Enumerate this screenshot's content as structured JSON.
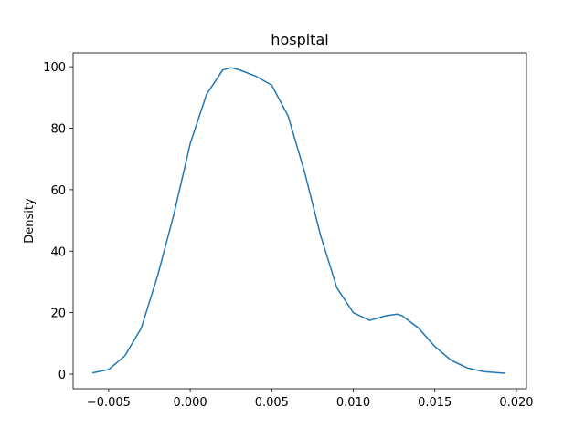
{
  "chart_data": {
    "type": "line",
    "title": "hospital",
    "y_label": "Density",
    "x": [
      -0.006,
      -0.005,
      -0.004,
      -0.003,
      -0.002,
      -0.001,
      0.0,
      0.001,
      0.002,
      0.0025,
      0.003,
      0.004,
      0.005,
      0.006,
      0.007,
      0.008,
      0.009,
      0.01,
      0.011,
      0.012,
      0.0127,
      0.013,
      0.014,
      0.015,
      0.016,
      0.017,
      0.018,
      0.019,
      0.0193
    ],
    "series": [
      {
        "color": "#1f77b4",
        "values": [
          0.4,
          1.5,
          6,
          15,
          32,
          52,
          75,
          91,
          99,
          99.7,
          99,
          97,
          94,
          84,
          66,
          45,
          28,
          20,
          17.5,
          19,
          19.5,
          19,
          15,
          9,
          4.5,
          2,
          0.8,
          0.4,
          0.3
        ]
      }
    ],
    "xlim": [
      -0.00718,
      0.02062
    ],
    "xticks": [
      {
        "value": -0.005,
        "label": "−0.005"
      },
      {
        "value": 0,
        "label": "0.000"
      },
      {
        "value": 0.005,
        "label": "0.005"
      },
      {
        "value": 0.01,
        "label": "0.010"
      },
      {
        "value": 0.015,
        "label": "0.015"
      },
      {
        "value": 0.02,
        "label": "0.020"
      }
    ],
    "ylim": [
      -4.75,
      104.5
    ],
    "yticks": [
      0,
      20,
      40,
      60,
      80,
      100
    ]
  }
}
